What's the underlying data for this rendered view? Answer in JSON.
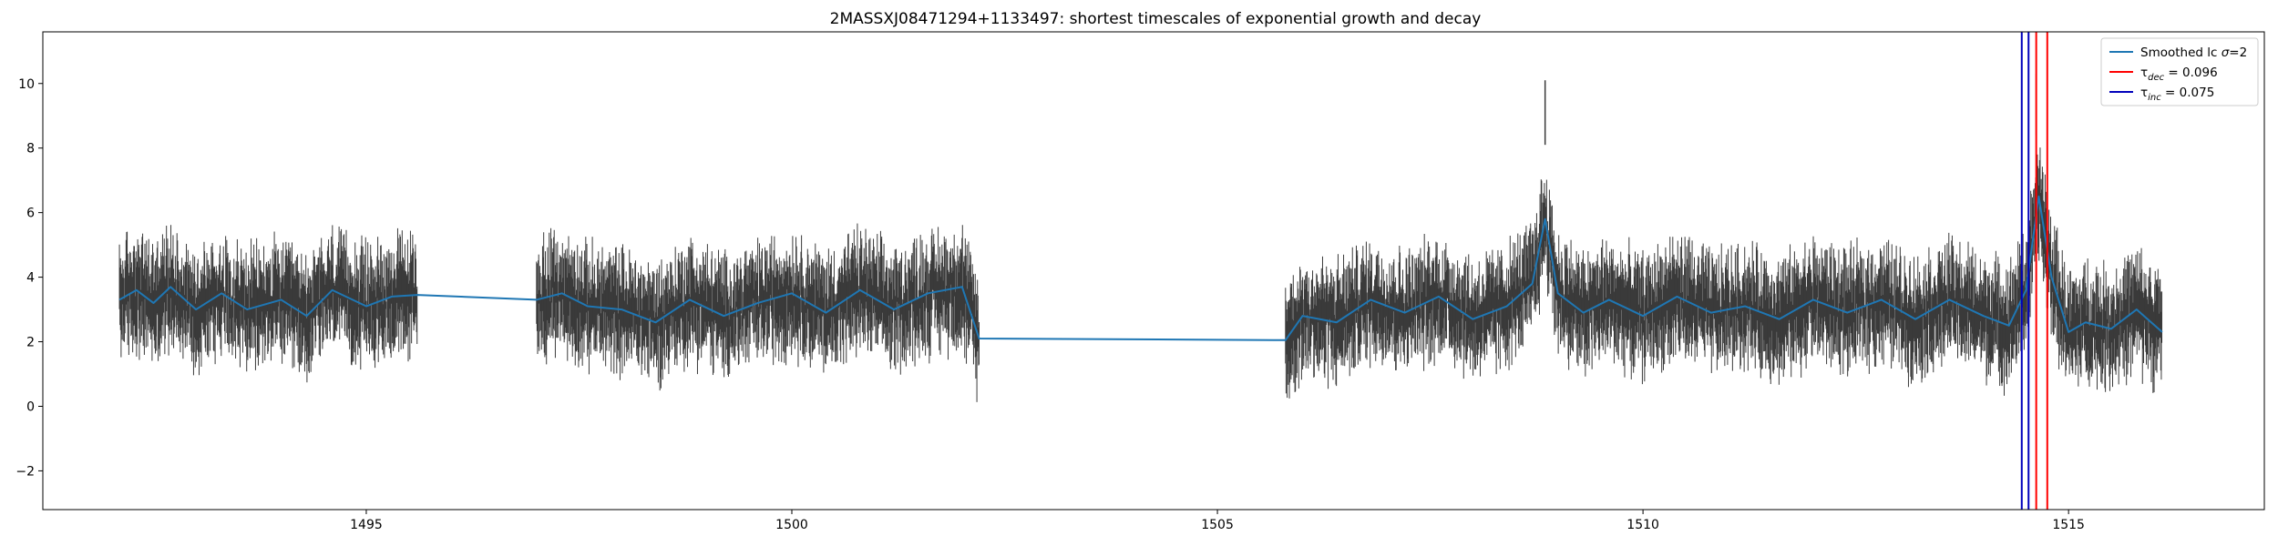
{
  "chart_data": {
    "type": "line",
    "title": "2MASSXJ08471294+1133497: shortest timescales of exponential growth and decay",
    "xlabel": "",
    "ylabel": "",
    "xlim": [
      1491.2,
      1517.3
    ],
    "ylim": [
      -3.2,
      11.6
    ],
    "xticks": [
      1495,
      1500,
      1505,
      1510,
      1515
    ],
    "yticks": [
      -2,
      0,
      2,
      4,
      6,
      8,
      10
    ],
    "grid": false,
    "legend_position": "top-right",
    "colors": {
      "errorbars": "#3a3a3a",
      "smoothed": "#1f77b4",
      "tau_dec": "#ff0000",
      "tau_inc": "#0000bb",
      "axes": "#000000"
    },
    "observing_segments": [
      {
        "x_start": 1492.1,
        "x_end": 1495.6
      },
      {
        "x_start": 1497.0,
        "x_end": 1502.2
      },
      {
        "x_start": 1505.8,
        "x_end": 1516.1
      }
    ],
    "errorbar_typical_halfwidth": 1.0,
    "series": [
      {
        "name": "Smoothed lc σ=2",
        "x": [
          1492.1,
          1492.3,
          1492.5,
          1492.7,
          1493.0,
          1493.3,
          1493.6,
          1494.0,
          1494.3,
          1494.6,
          1495.0,
          1495.3,
          1495.6,
          1497.0,
          1497.3,
          1497.6,
          1498.0,
          1498.4,
          1498.8,
          1499.2,
          1499.6,
          1500.0,
          1500.4,
          1500.8,
          1501.2,
          1501.6,
          1502.0,
          1502.2,
          1505.8,
          1506.0,
          1506.4,
          1506.8,
          1507.2,
          1507.6,
          1508.0,
          1508.4,
          1508.7,
          1508.85,
          1509.0,
          1509.3,
          1509.6,
          1510.0,
          1510.4,
          1510.8,
          1511.2,
          1511.6,
          1512.0,
          1512.4,
          1512.8,
          1513.2,
          1513.6,
          1514.0,
          1514.3,
          1514.5,
          1514.65,
          1514.8,
          1515.0,
          1515.2,
          1515.5,
          1515.8,
          1516.1
        ],
        "y": [
          3.3,
          3.6,
          3.2,
          3.7,
          3.0,
          3.5,
          3.0,
          3.3,
          2.8,
          3.6,
          3.1,
          3.4,
          3.45,
          3.3,
          3.5,
          3.1,
          3.0,
          2.6,
          3.3,
          2.8,
          3.2,
          3.5,
          2.9,
          3.6,
          3.0,
          3.5,
          3.7,
          2.1,
          2.05,
          2.8,
          2.6,
          3.3,
          2.9,
          3.4,
          2.7,
          3.1,
          3.8,
          5.8,
          3.5,
          2.9,
          3.3,
          2.8,
          3.4,
          2.9,
          3.1,
          2.7,
          3.3,
          2.9,
          3.3,
          2.7,
          3.3,
          2.8,
          2.5,
          3.6,
          6.5,
          4.0,
          2.3,
          2.6,
          2.4,
          3.0,
          2.3
        ]
      }
    ],
    "vertical_lines": [
      {
        "label": "τ_dec = 0.096",
        "color": "#ff0000",
        "x": [
          1514.62,
          1514.75
        ]
      },
      {
        "label": "τ_inc = 0.075",
        "color": "#0000bb",
        "x": [
          1514.45,
          1514.53
        ]
      }
    ],
    "spikes": [
      {
        "x": 1508.85,
        "y_low": 8.1,
        "y_high": 10.1
      },
      {
        "x": 1514.62,
        "y_low": 8.4,
        "y_high": 10.3
      }
    ],
    "legend": [
      {
        "key": "smoothed",
        "prefix": "Smoothed lc ",
        "italic": "σ",
        "suffix": "=2"
      },
      {
        "key": "tau_dec",
        "prefix": "τ",
        "subscript": "dec",
        "suffix": " = 0.096"
      },
      {
        "key": "tau_inc",
        "prefix": "τ",
        "subscript": "inc",
        "suffix": " = 0.075"
      }
    ]
  }
}
